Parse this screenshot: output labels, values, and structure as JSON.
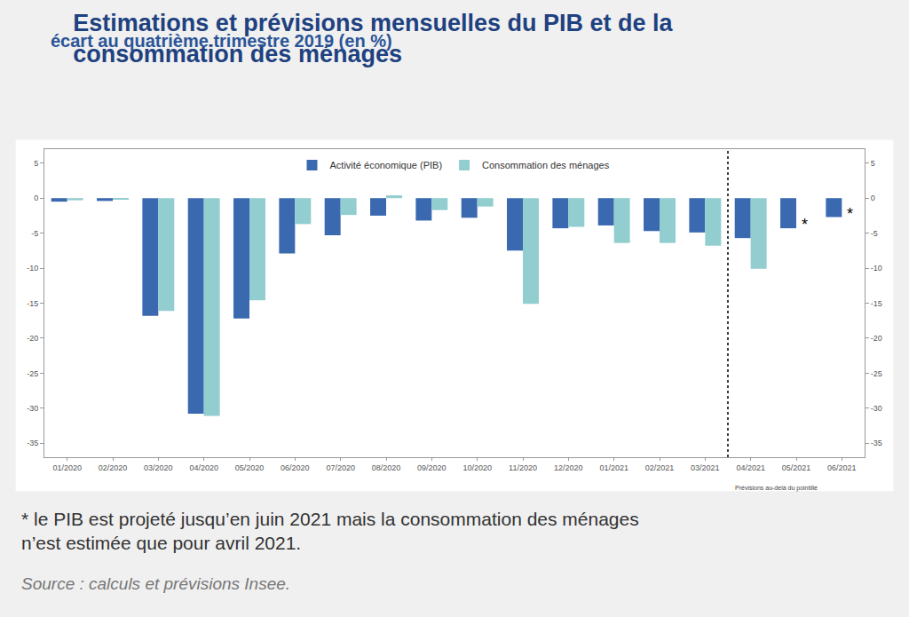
{
  "chart_data": {
    "type": "bar",
    "title": "Estimations et prévisions mensuelles du PIB et de la consommation des ménages",
    "subtitle": "écart au quatrième trimestre 2019 (en %)",
    "categories": [
      "01/2020",
      "02/2020",
      "03/2020",
      "04/2020",
      "05/2020",
      "06/2020",
      "07/2020",
      "08/2020",
      "09/2020",
      "10/2020",
      "11/2020",
      "12/2020",
      "01/2021",
      "02/2021",
      "03/2021",
      "04/2021",
      "05/2021",
      "06/2021"
    ],
    "series": [
      {
        "name": "Activité économique (PIB)",
        "color": "#3a69b0",
        "values": [
          -0.5,
          -0.4,
          -16.8,
          -30.8,
          -17.2,
          -7.9,
          -5.3,
          -2.5,
          -3.2,
          -2.8,
          -7.5,
          -4.3,
          -3.9,
          -4.7,
          -4.9,
          -5.7,
          -4.3,
          -2.7
        ]
      },
      {
        "name": "Consommation des ménages",
        "color": "#92cdcf",
        "values": [
          -0.3,
          -0.2,
          -16.1,
          -31.1,
          -14.6,
          -3.7,
          -2.4,
          0.4,
          -1.7,
          -1.2,
          -15.1,
          -4.1,
          -6.4,
          -6.4,
          -6.8,
          -10.1,
          null,
          null
        ]
      }
    ],
    "ylim": [
      -37,
      7
    ],
    "yticks": [
      -35,
      -30,
      -25,
      -20,
      -15,
      -10,
      -5,
      0,
      5
    ],
    "grid": false,
    "legend": "top",
    "forecast_start": "04/2021",
    "forecast_note": "Prévisions au-delà du pointillé",
    "annotations": [
      {
        "category": "05/2021",
        "series": "Activité économique (PIB)",
        "text": "*"
      },
      {
        "category": "06/2021",
        "series": "Activité économique (PIB)",
        "text": "*"
      }
    ],
    "footnote": [
      "* le PIB est projeté jusqu’en juin 2021 mais la consommation des ménages",
      "n’est estimée que pour avril 2021."
    ],
    "source": "Source : calculs et prévisions Insee."
  }
}
